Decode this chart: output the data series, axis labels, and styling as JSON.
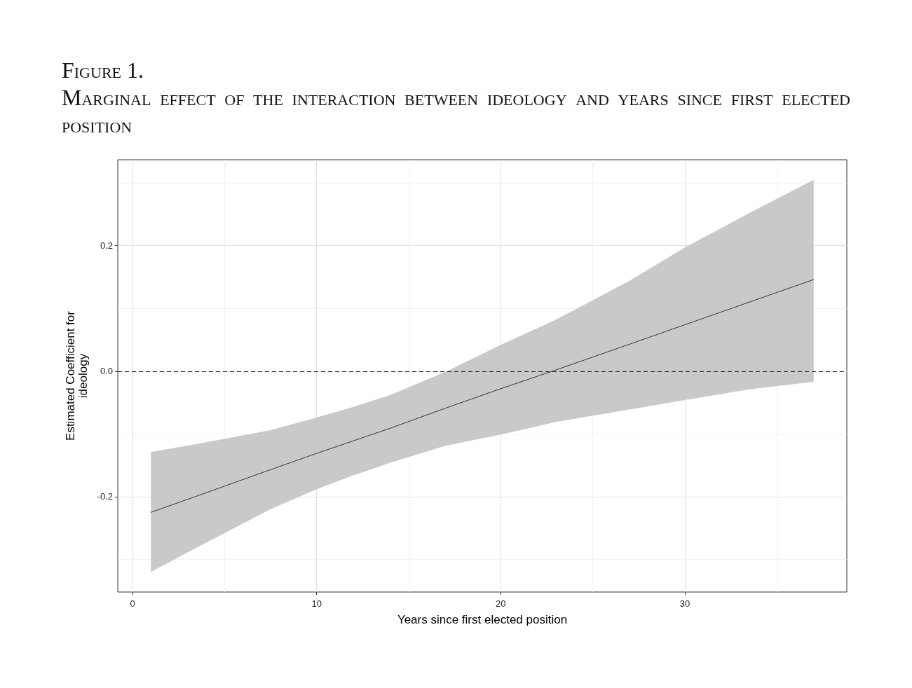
{
  "chart_data": {
    "type": "line",
    "title": "Figure 1.",
    "subtitle": "Marginal effect of the interaction between ideology and years since first elected position",
    "xlabel": "Years since first elected position",
    "ylabel": "Estimated Coefficient for ideology",
    "xlim": [
      -0.8,
      38.8
    ],
    "ylim": [
      -0.352,
      0.337
    ],
    "xticks": [
      0,
      {
        "value": 5,
        "label": null
      },
      10,
      {
        "value": 15,
        "label": null
      },
      20,
      {
        "value": 25,
        "label": null
      },
      30,
      {
        "value": 35,
        "label": null
      }
    ],
    "yticks": [
      {
        "value": -0.3,
        "label": null
      },
      -0.2,
      {
        "value": -0.1,
        "label": null
      },
      {
        "value": 0,
        "label": "0.0"
      },
      {
        "value": 0.1,
        "label": null
      },
      0.2,
      {
        "value": 0.3,
        "label": null
      }
    ],
    "grid": true,
    "series": [
      {
        "color": "#333333",
        "x": [
          1,
          3.5,
          7.5,
          10,
          12,
          14,
          17,
          20,
          23,
          27,
          30,
          33.5,
          37
        ],
        "values": [
          -0.225,
          -0.199,
          -0.157,
          -0.131,
          -0.111,
          -0.091,
          -0.059,
          -0.028,
          0.002,
          0.043,
          0.074,
          0.11,
          0.146
        ],
        "lower": [
          -0.32,
          -0.281,
          -0.22,
          -0.188,
          -0.166,
          -0.146,
          -0.119,
          -0.101,
          -0.081,
          -0.061,
          -0.046,
          -0.029,
          -0.017
        ],
        "upper": [
          -0.129,
          -0.116,
          -0.094,
          -0.074,
          -0.057,
          -0.038,
          -0.001,
          0.042,
          0.082,
          0.144,
          0.197,
          0.252,
          0.305
        ]
      }
    ],
    "ref_lines": [
      {
        "axis": "y",
        "value": 0,
        "color": "#1a1a1a",
        "line_style": "dashed"
      }
    ]
  }
}
